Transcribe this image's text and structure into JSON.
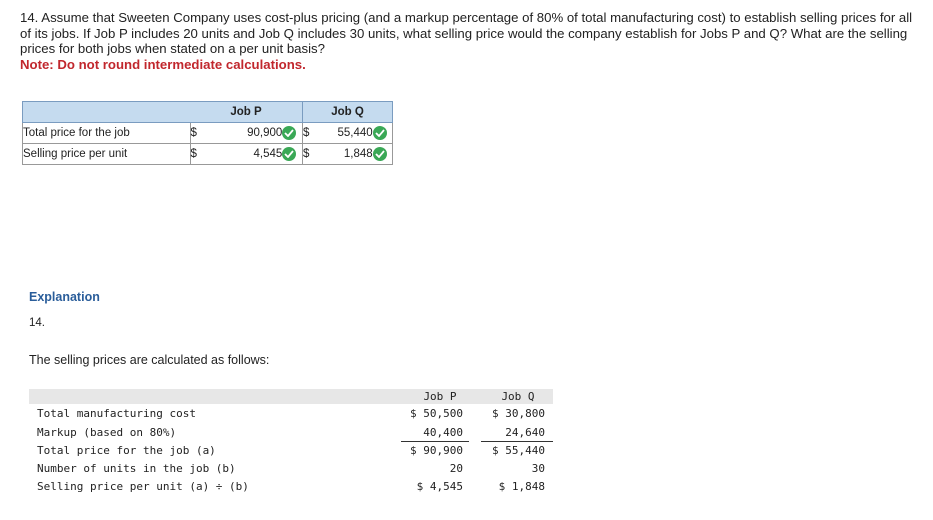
{
  "question": {
    "text": "14. Assume that Sweeten Company uses cost-plus pricing (and a markup percentage of 80% of total manufacturing cost) to establish selling prices for all of its jobs. If Job P includes 20 units and Job Q includes 30 units, what selling price would the company establish for Jobs P and Q? What are the selling prices for both jobs when stated on a per unit basis?",
    "note": "Note: Do not round intermediate calculations."
  },
  "answer_table": {
    "headers": [
      "",
      "Job P",
      "Job Q"
    ],
    "rows": [
      {
        "label": "Total price for the job",
        "cur_p": "$",
        "val_p": "90,900",
        "cur_q": "$",
        "val_q": "55,440"
      },
      {
        "label": "Selling price per unit",
        "cur_p": "$",
        "val_p": "4,545",
        "cur_q": "$",
        "val_q": "1,848"
      }
    ]
  },
  "explanation": {
    "title": "Explanation",
    "number": "14.",
    "intro": "The selling prices are calculated as follows:",
    "calc": {
      "headers": [
        "Job P",
        "Job Q"
      ],
      "rows": [
        {
          "label": "Total manufacturing cost",
          "p": "$ 50,500",
          "q": "$ 30,800"
        },
        {
          "label": "Markup (based on 80%)",
          "p": "40,400",
          "q": "24,640"
        },
        {
          "label": "Total price for the job (a)",
          "p": "$ 90,900",
          "q": "$ 55,440"
        },
        {
          "label": "Number of units in the job (b)",
          "p": "20",
          "q": "30"
        },
        {
          "label": "Selling price per unit (a) ÷ (b)",
          "p": "$ 4,545",
          "q": "$ 1,848"
        }
      ]
    }
  },
  "colors": {
    "note": "#c1272d",
    "header_bg": "#c5dbef",
    "check": "#3aa856",
    "explanation_title": "#2a5d9a"
  },
  "icons": {
    "correct": "check-circle-icon"
  }
}
